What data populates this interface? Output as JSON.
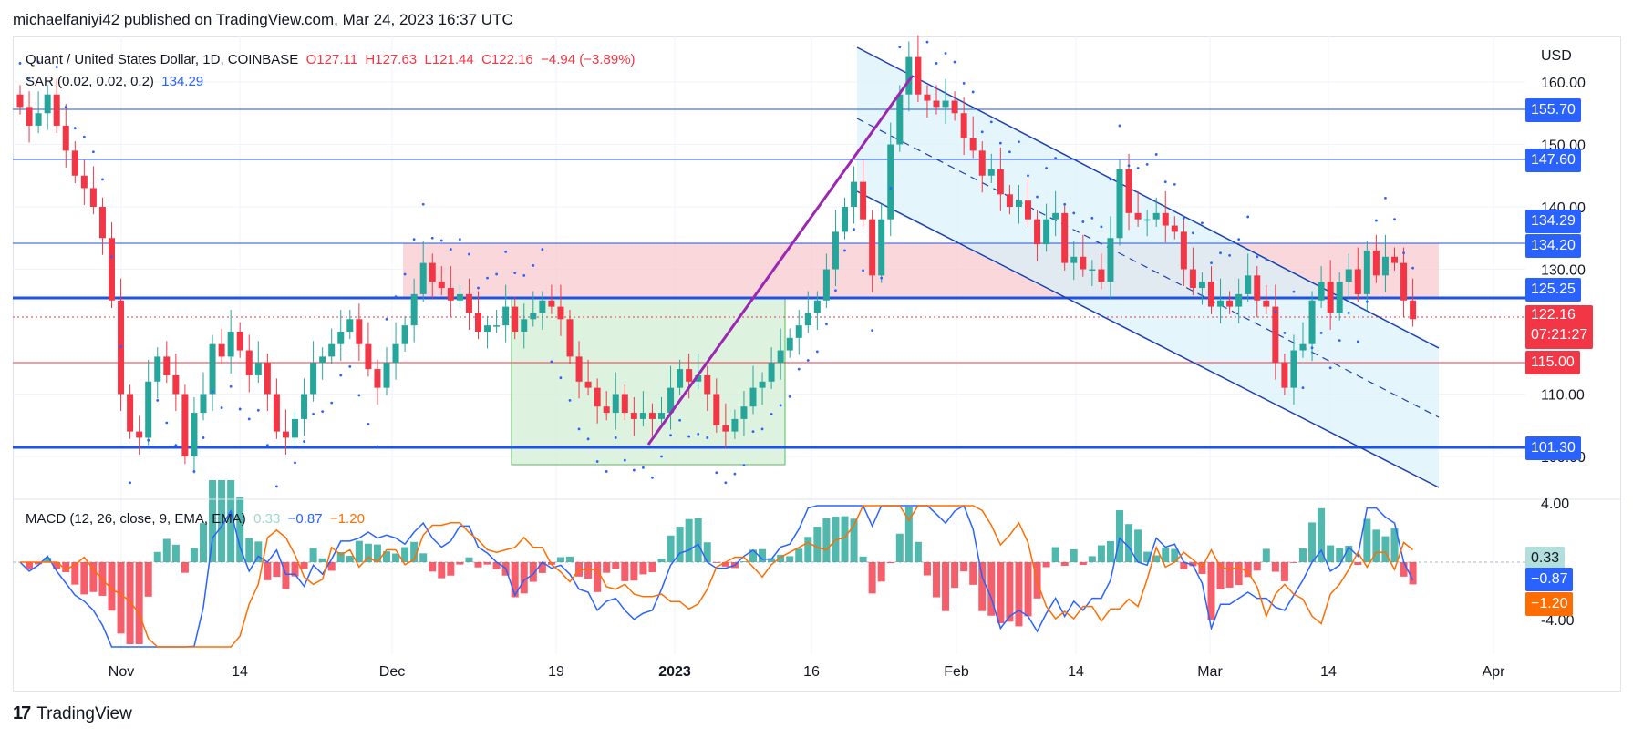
{
  "header": {
    "text": "michaelfaniyi42 published on TradingView.com, Mar 24, 2023 16:37 UTC"
  },
  "legend": {
    "symbol": "Quant / United States Dollar, 1D, COINBASE",
    "o": "O127.11",
    "h": "H127.63",
    "l": "L121.44",
    "c": "C122.16",
    "chg": "−4.94 (−3.89%)",
    "sar_label": "SAR (0.02, 0.02, 0.2)",
    "sar_value": "134.29"
  },
  "macd_legend": {
    "label": "MACD (12, 26, close, 9, EMA, EMA)",
    "hist": "0.33",
    "macd": "−0.87",
    "signal": "−1.20"
  },
  "footer": {
    "brand": "TradingView",
    "logo": "17"
  },
  "colors": {
    "up": "#26a69a",
    "down": "#f23645",
    "sar": "#2962ff",
    "level_line": "#1e53e5",
    "red_zone": "#f7c9cf",
    "green_zone": "#d6efd8",
    "channel": "#d8f2fb",
    "trend_up": "#9c27b0",
    "macd_line": "#2962ff",
    "signal_line": "#ff6d00"
  },
  "chart_data": {
    "type": "candlestick",
    "price_axis": {
      "currency": "USD",
      "ticks": [
        "160.00",
        "150.00",
        "140.00",
        "130.00",
        "110.00",
        "100.00"
      ],
      "ylim": [
        95,
        166
      ]
    },
    "macd_axis": {
      "ticks": [
        "4.00",
        "-4.00"
      ]
    },
    "x_ticks": [
      "Nov",
      "14",
      "Dec",
      "19",
      "2023",
      "16",
      "Feb",
      "14",
      "Mar",
      "14",
      "Apr"
    ],
    "price_tags": [
      {
        "label": "155.70",
        "value": 155.7,
        "color": "#2962ff"
      },
      {
        "label": "147.60",
        "value": 147.6,
        "color": "#2962ff"
      },
      {
        "label": "134.29",
        "value": 134.29,
        "color": "#2962ff"
      },
      {
        "label": "134.20",
        "value": 134.2,
        "color": "#2962ff"
      },
      {
        "label": "125.25",
        "value": 125.25,
        "color": "#2962ff"
      },
      {
        "label": "122.16",
        "sub": "07:21:27",
        "value": 122.16,
        "color": "#f23645"
      },
      {
        "label": "115.00",
        "value": 115.0,
        "color": "#f23645"
      },
      {
        "label": "101.30",
        "value": 101.3,
        "color": "#2962ff"
      }
    ],
    "macd_tags": [
      {
        "label": "0.33",
        "color": "#b2dfdb",
        "text_color": "#131722"
      },
      {
        "label": "−0.87",
        "color": "#2962ff",
        "text_color": "#ffffff"
      },
      {
        "label": "−1.20",
        "color": "#ff6d00",
        "text_color": "#ffffff"
      }
    ],
    "levels": [
      155.7,
      147.6,
      134.2,
      125.25,
      115.0,
      101.3
    ],
    "candles_close": [
      156,
      153,
      155,
      158,
      153,
      149,
      145,
      143,
      140,
      135,
      125,
      110,
      104,
      103,
      112,
      116,
      113,
      110,
      100,
      107,
      110,
      118,
      116,
      120,
      117,
      113,
      115,
      110,
      104,
      103,
      106,
      110,
      115,
      116,
      118,
      120,
      122,
      118,
      114,
      111,
      115,
      118,
      121,
      126,
      131,
      128,
      127,
      125,
      126,
      123,
      120,
      121,
      121,
      124,
      120,
      122,
      123,
      125,
      124,
      122,
      116,
      112,
      111,
      108,
      107,
      110,
      107,
      106,
      107,
      106,
      107,
      111,
      114,
      112,
      113,
      110,
      105,
      104,
      106,
      108,
      111,
      112,
      115,
      117,
      119,
      121,
      123,
      125,
      130,
      136,
      140,
      144,
      138,
      129,
      138,
      150,
      158,
      164,
      158,
      157,
      156,
      157,
      155,
      151,
      149,
      145,
      146,
      142,
      140,
      141,
      138,
      134,
      138,
      139,
      131,
      132,
      130,
      130,
      128,
      135,
      146,
      139,
      138,
      138,
      139,
      137,
      136,
      130,
      127,
      128,
      124,
      125,
      124,
      126,
      129,
      125,
      124,
      115,
      111,
      117,
      118,
      125,
      128,
      123,
      128,
      130,
      126,
      133,
      129,
      132,
      131,
      125,
      122
    ]
  }
}
